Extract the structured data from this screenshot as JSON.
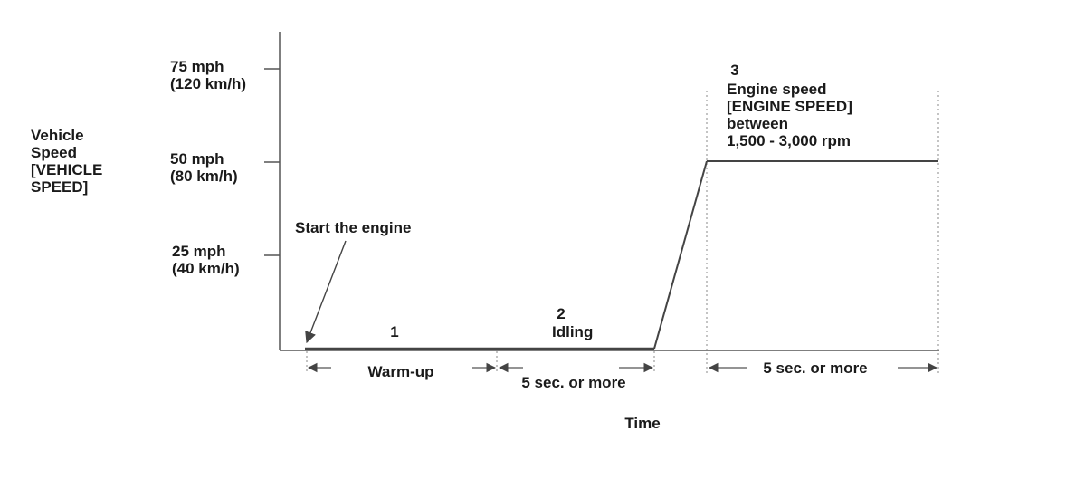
{
  "y_axis": {
    "title_lines": [
      "Vehicle",
      "Speed",
      "[VEHICLE",
      "SPEED]"
    ],
    "ticks": [
      {
        "mph": "75 mph",
        "kmh": "(120 km/h)"
      },
      {
        "mph": "50 mph",
        "kmh": "(80 km/h)"
      },
      {
        "mph": "25 mph",
        "kmh": "(40 km/h)"
      }
    ]
  },
  "x_axis": {
    "title": "Time"
  },
  "annotations": {
    "start_engine": "Start the engine",
    "step1_number": "1",
    "step2_number": "2",
    "step2_label": "Idling",
    "step3_number": "3",
    "step3_lines": [
      "Engine speed",
      "[ENGINE SPEED]",
      "between",
      "1,500 - 3,000 rpm"
    ]
  },
  "dimensions": {
    "warmup": "Warm-up",
    "idle_duration": "5 sec. or more",
    "steady_duration": "5 sec. or more"
  },
  "colors": {
    "line": "#444444",
    "text": "#1a1a1a",
    "guide": "#888888"
  }
}
